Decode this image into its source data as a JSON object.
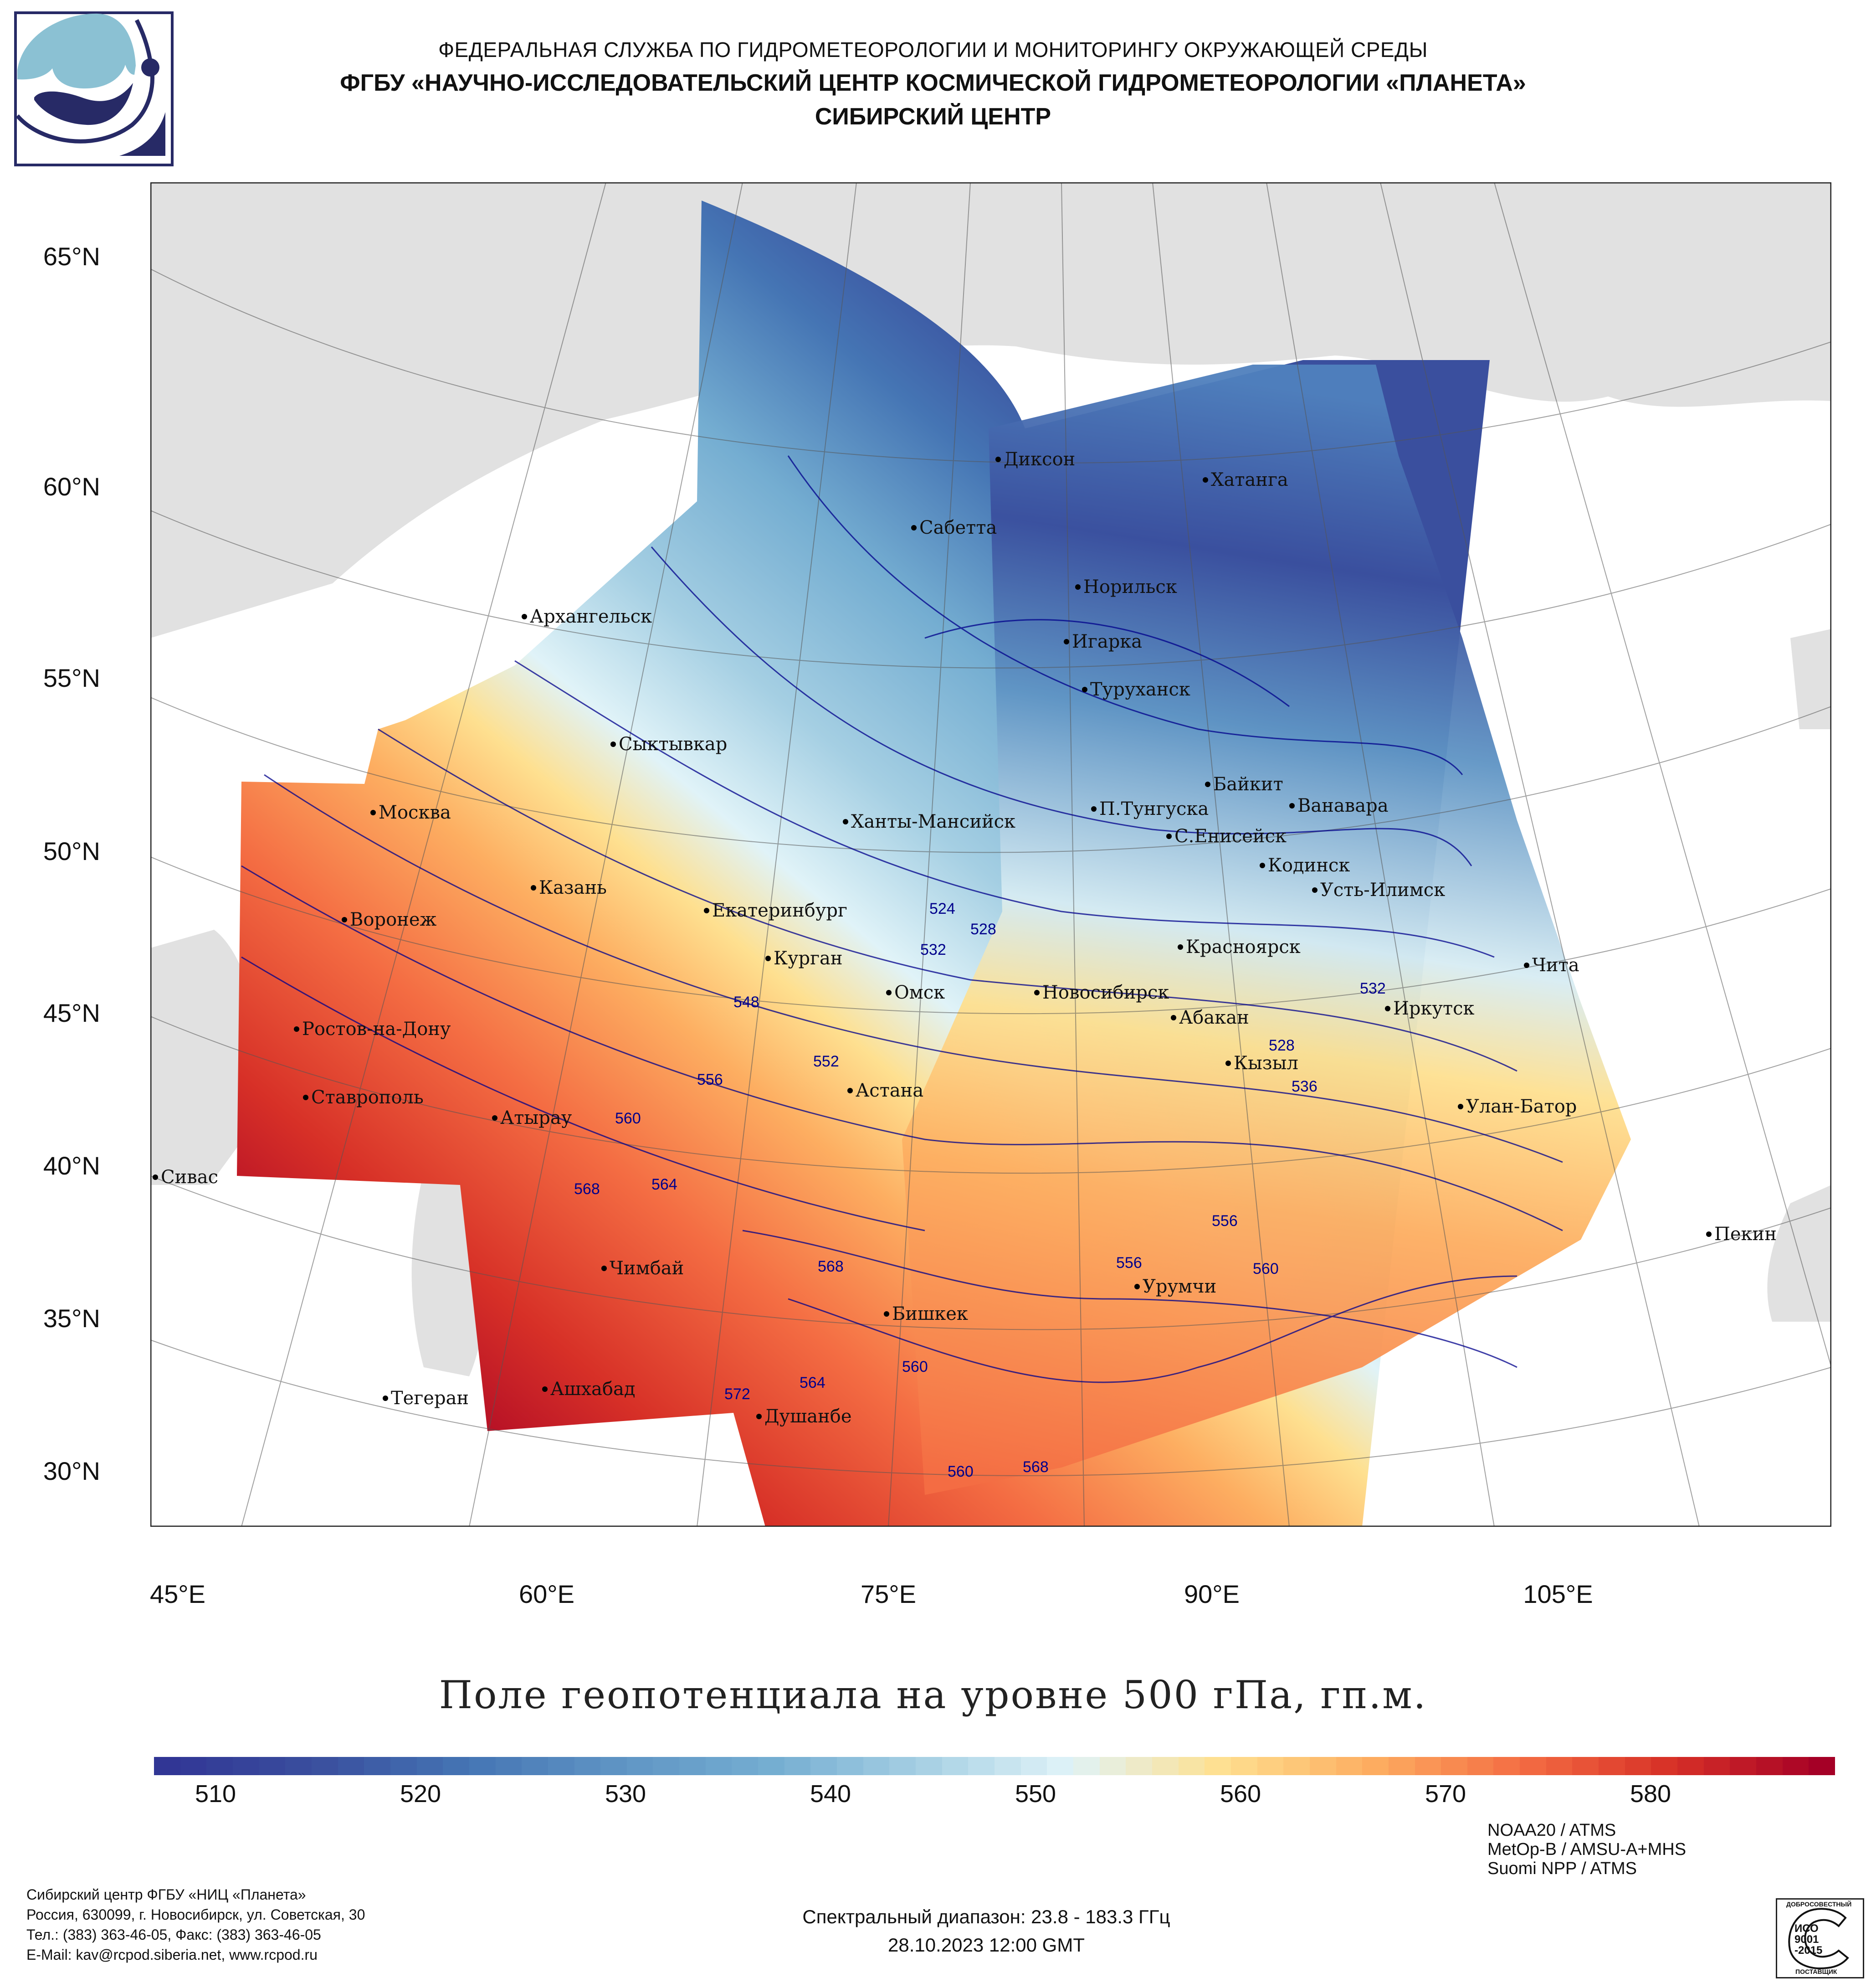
{
  "header": {
    "line1": "ФЕДЕРАЛЬНАЯ СЛУЖБА ПО ГИДРОМЕТЕОРОЛОГИИ И МОНИТОРИНГУ ОКРУЖАЮЩЕЙ СРЕДЫ",
    "line2": "ФГБУ «НАУЧНО-ИССЛЕДОВАТЕЛЬСКИЙ ЦЕНТР КОСМИЧЕСКОЙ ГИДРОМЕТЕОРОЛОГИИ «ПЛАНЕТА»",
    "line3": "СИБИРСКИЙ ЦЕНТР",
    "logo_icon": "planeta-logo-icon"
  },
  "map": {
    "lat_labels": [
      "65°N",
      "60°N",
      "55°N",
      "50°N",
      "45°N",
      "40°N",
      "35°N",
      "30°N"
    ],
    "lon_labels": [
      "45°E",
      "60°E",
      "75°E",
      "90°E",
      "105°E"
    ],
    "cities": [
      {
        "name": "Диксон"
      },
      {
        "name": "Хатанга"
      },
      {
        "name": "Сабетта"
      },
      {
        "name": "Норильск"
      },
      {
        "name": "Архангельск"
      },
      {
        "name": "Игарка"
      },
      {
        "name": "Туруханск"
      },
      {
        "name": "Сыктывкар"
      },
      {
        "name": "Москва"
      },
      {
        "name": "Байкит"
      },
      {
        "name": "П.Тунгуска"
      },
      {
        "name": "Ванавара"
      },
      {
        "name": "Ханты-Мансийск"
      },
      {
        "name": "С.Енисейск"
      },
      {
        "name": "Кодинск"
      },
      {
        "name": "Усть-Илимск"
      },
      {
        "name": "Казань"
      },
      {
        "name": "Воронеж"
      },
      {
        "name": "Екатеринбург"
      },
      {
        "name": "Красноярск"
      },
      {
        "name": "Курган"
      },
      {
        "name": "Омск"
      },
      {
        "name": "Новосибирск"
      },
      {
        "name": "Чита"
      },
      {
        "name": "Ростов-на-Дону"
      },
      {
        "name": "Абакан"
      },
      {
        "name": "Иркутск"
      },
      {
        "name": "Кызыл"
      },
      {
        "name": "Ставрополь"
      },
      {
        "name": "Астана"
      },
      {
        "name": "Улан-Батор"
      },
      {
        "name": "Атырау"
      },
      {
        "name": "Сивас"
      },
      {
        "name": "Пекин"
      },
      {
        "name": "Чимбай"
      },
      {
        "name": "Урумчи"
      },
      {
        "name": "Бишкек"
      },
      {
        "name": "Ашхабад"
      },
      {
        "name": "Душанбе"
      },
      {
        "name": "Тегеран"
      }
    ],
    "contour_labels": [
      "524",
      "528",
      "532",
      "548",
      "552",
      "556",
      "560",
      "564",
      "568",
      "572",
      "528",
      "536",
      "532",
      "556",
      "560",
      "564",
      "568",
      "560",
      "568",
      "556",
      "560"
    ]
  },
  "product_title": "Поле геопотенциала на уровне 500 гПа, гп.м.",
  "colorbar": {
    "ticks": [
      "510",
      "520",
      "530",
      "540",
      "550",
      "560",
      "570",
      "580"
    ],
    "min": 507,
    "max": 589,
    "colors": [
      "#313695",
      "#3a4f9e",
      "#4575b4",
      "#5f94c4",
      "#74add1",
      "#a5cfe3",
      "#e0f3f8",
      "#fee090",
      "#fdae61",
      "#f46d43",
      "#d73027",
      "#a50026"
    ]
  },
  "footer": {
    "org_lines": [
      "Сибирский центр ФГБУ «НИЦ «Планета»",
      "Россия, 630099, г. Новосибирск, ул. Советская, 30",
      "Тел.: (383) 363-46-05, Факс: (383) 363-46-05",
      "E-Mail: kav@rcpod.siberia.net, www.rcpod.ru"
    ],
    "spectral": "Спектральный диапазон: 23.8 - 183.3 ГГц",
    "datetime": "28.10.2023 12:00 GMT",
    "sensors": [
      "NOAA20 / ATMS",
      "MetOp-B / AMSU-A+MHS",
      "Suomi NPP / ATMS"
    ],
    "iso_badge": {
      "top": "ДОБРОСОВЕСТНЫЙ",
      "line1": "ИСО",
      "line2": "9001",
      "line3": "-2015",
      "bottom": "ПОСТАВЩИК"
    }
  }
}
